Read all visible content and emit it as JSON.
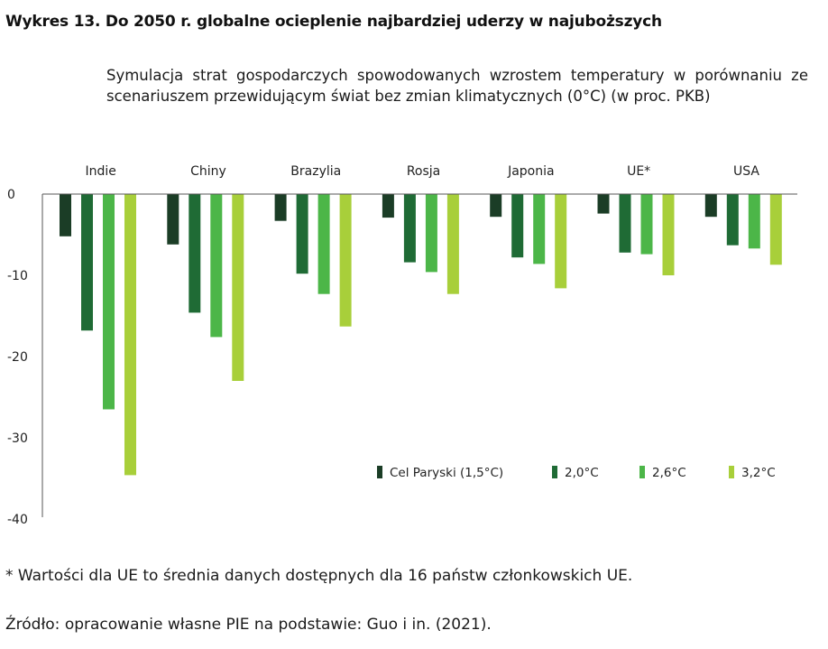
{
  "title": "Wykres 13. Do 2050 r. globalne ocieplenie najbardziej uderzy w najuboższych",
  "subtitle": "Symulacja strat gospodarczych spowodowanych wzrostem temperatury w porównaniu ze scenariuszem przewidującym świat bez zmian klimatycznych (0°C) (w proc. PKB)",
  "footnote": "* Wartości dla UE to średnia danych dostępnych dla 16 państw członkowskich UE.",
  "source": "Źródło: opracowanie własne PIE na podstawie: Guo i in. (2021).",
  "chart_data": {
    "type": "bar",
    "categories": [
      "Indie",
      "Chiny",
      "Brazylia",
      "Rosja",
      "Japonia",
      "UE*",
      "USA"
    ],
    "series": [
      {
        "name": "Cel Paryski (1,5°C)",
        "color": "#1b3d26",
        "values": [
          -5.2,
          -6.2,
          -3.3,
          -2.9,
          -2.8,
          -2.4,
          -2.8
        ]
      },
      {
        "name": "2,0°C",
        "color": "#1f6b35",
        "values": [
          -16.8,
          -14.6,
          -9.8,
          -8.4,
          -7.8,
          -7.2,
          -6.3
        ]
      },
      {
        "name": "2,6°C",
        "color": "#4cb648",
        "values": [
          -26.5,
          -17.6,
          -12.3,
          -9.6,
          -8.6,
          -7.4,
          -6.7
        ]
      },
      {
        "name": "3,2°C",
        "color": "#a8cf3a",
        "values": [
          -34.6,
          -23.0,
          -16.3,
          -12.3,
          -11.6,
          -10.0,
          -8.7
        ]
      }
    ],
    "yticks": [
      0,
      -10,
      -20,
      -30,
      -40
    ],
    "ylim": [
      -40,
      0
    ],
    "xlabel": "",
    "ylabel": "",
    "category_labels_position": "top",
    "legend_position": "lower-right",
    "grid": false
  }
}
